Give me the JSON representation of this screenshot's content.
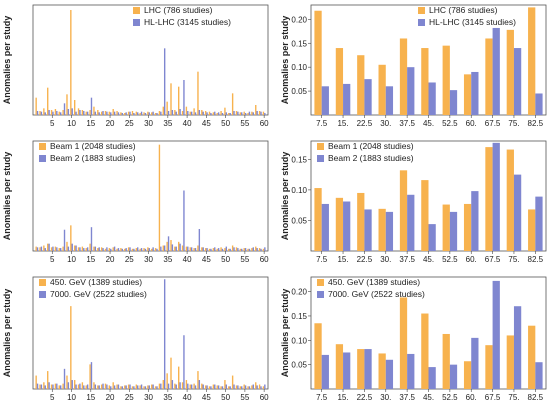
{
  "figure": {
    "colors": {
      "series_a": "#F7B24E",
      "series_b": "#7F86D0",
      "axis": "#555555"
    }
  },
  "chart_data": [
    {
      "type": "bar",
      "panel": "top-left",
      "ylabel": "Anomalies per study",
      "xlim": [
        0,
        61
      ],
      "ylim": [
        0,
        0.33
      ],
      "xticks": [
        "5",
        "10",
        "15",
        "20",
        "25",
        "30",
        "35",
        "40",
        "45",
        "50",
        "55",
        "60"
      ],
      "legend": "top-center",
      "grid": false,
      "x": [
        1,
        2,
        3,
        4,
        5,
        6,
        7,
        8,
        9,
        10,
        11,
        12,
        13,
        14,
        15,
        16,
        17,
        18,
        19,
        20,
        21,
        22,
        23,
        24,
        25,
        26,
        27,
        28,
        29,
        30,
        31,
        32,
        33,
        34,
        35,
        36,
        37,
        38,
        39,
        40,
        41,
        42,
        43,
        44,
        45,
        46,
        47,
        48,
        49,
        50,
        51,
        52,
        53,
        54,
        55,
        56,
        57,
        58,
        59,
        60
      ],
      "series": [
        {
          "name": "LHC (786 studies)",
          "values": [
            0.052,
            0.012,
            0.02,
            0.082,
            0.015,
            0.018,
            0.01,
            0.015,
            0.062,
            0.315,
            0.045,
            0.02,
            0.015,
            0.01,
            0.015,
            0.025,
            0.015,
            0.01,
            0.012,
            0.01,
            0.018,
            0.012,
            0.008,
            0.006,
            0.01,
            0.012,
            0.01,
            0.006,
            0.008,
            0.01,
            0.008,
            0.006,
            0.012,
            0.025,
            0.04,
            0.095,
            0.015,
            0.085,
            0.012,
            0.025,
            0.01,
            0.02,
            0.13,
            0.015,
            0.012,
            0.01,
            0.008,
            0.006,
            0.012,
            0.022,
            0.006,
            0.065,
            0.012,
            0.008,
            0.01,
            0.006,
            0.01,
            0.03,
            0.012,
            0.01
          ]
        },
        {
          "name": "HL-LHC (3145 studies)",
          "values": [
            0.012,
            0.01,
            0.008,
            0.015,
            0.01,
            0.012,
            0.008,
            0.035,
            0.018,
            0.02,
            0.01,
            0.015,
            0.012,
            0.01,
            0.052,
            0.01,
            0.008,
            0.012,
            0.01,
            0.008,
            0.01,
            0.008,
            0.006,
            0.008,
            0.01,
            0.006,
            0.008,
            0.01,
            0.006,
            0.008,
            0.01,
            0.006,
            0.01,
            0.2,
            0.012,
            0.015,
            0.01,
            0.018,
            0.105,
            0.012,
            0.01,
            0.008,
            0.015,
            0.01,
            0.008,
            0.006,
            0.01,
            0.008,
            0.006,
            0.008,
            0.006,
            0.012,
            0.01,
            0.008,
            0.006,
            0.01,
            0.008,
            0.012,
            0.01,
            0.006
          ]
        }
      ]
    },
    {
      "type": "bar",
      "panel": "top-right",
      "ylabel": "Anomalies per study",
      "ylim": [
        0,
        0.23
      ],
      "yticks": [
        "0.05",
        "0.10",
        "0.15",
        "0.20"
      ],
      "categories": [
        "7.5",
        "15.",
        "22.5",
        "30.",
        "37.5",
        "45.",
        "52.5",
        "60.",
        "67.5",
        "75.",
        "82.5"
      ],
      "legend": "top-right",
      "grid": false,
      "series": [
        {
          "name": "LHC (786 studies)",
          "values": [
            0.218,
            0.14,
            0.125,
            0.105,
            0.16,
            0.14,
            0.145,
            0.085,
            0.16,
            0.178,
            0.225
          ]
        },
        {
          "name": "HL-LHC (3145 studies)",
          "values": [
            0.06,
            0.065,
            0.075,
            0.06,
            0.1,
            0.068,
            0.052,
            0.09,
            0.182,
            0.14,
            0.045
          ]
        }
      ]
    },
    {
      "type": "bar",
      "panel": "middle-left",
      "ylabel": "Anomalies per study",
      "xlim": [
        0,
        61
      ],
      "ylim": [
        0,
        0.3
      ],
      "xticks": [
        "5",
        "10",
        "15",
        "20",
        "25",
        "30",
        "35",
        "40",
        "45",
        "50",
        "55",
        "60"
      ],
      "legend": "top-left",
      "grid": false,
      "x": [
        1,
        2,
        3,
        4,
        5,
        6,
        7,
        8,
        9,
        10,
        11,
        12,
        13,
        14,
        15,
        16,
        17,
        18,
        19,
        20,
        21,
        22,
        23,
        24,
        25,
        26,
        27,
        28,
        29,
        30,
        31,
        32,
        33,
        34,
        35,
        36,
        37,
        38,
        39,
        40,
        41,
        42,
        43,
        44,
        45,
        46,
        47,
        48,
        49,
        50,
        51,
        52,
        53,
        54,
        55,
        56,
        57,
        58,
        59,
        60
      ],
      "series": [
        {
          "name": "Beam 1 (2048 studies)",
          "values": [
            0.012,
            0.01,
            0.015,
            0.02,
            0.01,
            0.012,
            0.008,
            0.012,
            0.025,
            0.07,
            0.015,
            0.01,
            0.012,
            0.008,
            0.02,
            0.012,
            0.008,
            0.01,
            0.006,
            0.008,
            0.01,
            0.006,
            0.008,
            0.006,
            0.01,
            0.006,
            0.008,
            0.006,
            0.008,
            0.01,
            0.006,
            0.008,
            0.29,
            0.015,
            0.025,
            0.03,
            0.012,
            0.025,
            0.015,
            0.012,
            0.01,
            0.008,
            0.015,
            0.01,
            0.008,
            0.006,
            0.008,
            0.006,
            0.01,
            0.008,
            0.006,
            0.015,
            0.01,
            0.006,
            0.008,
            0.006,
            0.008,
            0.012,
            0.008,
            0.006
          ]
        },
        {
          "name": "Beam 2 (1883 studies)",
          "values": [
            0.01,
            0.012,
            0.008,
            0.02,
            0.012,
            0.01,
            0.008,
            0.058,
            0.012,
            0.02,
            0.015,
            0.01,
            0.008,
            0.01,
            0.065,
            0.012,
            0.01,
            0.008,
            0.01,
            0.006,
            0.012,
            0.008,
            0.006,
            0.008,
            0.01,
            0.006,
            0.01,
            0.008,
            0.006,
            0.008,
            0.01,
            0.006,
            0.012,
            0.015,
            0.04,
            0.018,
            0.012,
            0.02,
            0.165,
            0.012,
            0.01,
            0.008,
            0.06,
            0.01,
            0.008,
            0.006,
            0.01,
            0.008,
            0.006,
            0.012,
            0.006,
            0.01,
            0.008,
            0.006,
            0.008,
            0.006,
            0.01,
            0.008,
            0.006,
            0.01
          ]
        }
      ]
    },
    {
      "type": "bar",
      "panel": "middle-right",
      "ylabel": "Anomalies per study",
      "ylim": [
        0,
        0.18
      ],
      "yticks": [
        "0.05",
        "0.10",
        "0.15"
      ],
      "categories": [
        "7.5",
        "15.",
        "22.5",
        "30.",
        "37.5",
        "45.",
        "52.5",
        "60.",
        "67.5",
        "75.",
        "82.5"
      ],
      "legend": "top-left",
      "grid": false,
      "series": [
        {
          "name": "Beam 1 (2048 studies)",
          "values": [
            0.103,
            0.087,
            0.095,
            0.069,
            0.132,
            0.116,
            0.076,
            0.077,
            0.17,
            0.166,
            0.068
          ]
        },
        {
          "name": "Beam 2 (1883 studies)",
          "values": [
            0.077,
            0.081,
            0.068,
            0.064,
            0.092,
            0.044,
            0.064,
            0.098,
            0.177,
            0.125,
            0.089
          ]
        }
      ]
    },
    {
      "type": "bar",
      "panel": "bottom-left",
      "ylabel": "Anomalies per study",
      "xlim": [
        0,
        61
      ],
      "ylim": [
        0,
        0.25
      ],
      "xticks": [
        "5",
        "10",
        "15",
        "20",
        "25",
        "30",
        "35",
        "40",
        "45",
        "50",
        "55",
        "60"
      ],
      "legend": "top-left",
      "grid": false,
      "x": [
        1,
        2,
        3,
        4,
        5,
        6,
        7,
        8,
        9,
        10,
        11,
        12,
        13,
        14,
        15,
        16,
        17,
        18,
        19,
        20,
        21,
        22,
        23,
        24,
        25,
        26,
        27,
        28,
        29,
        30,
        31,
        32,
        33,
        34,
        35,
        36,
        37,
        38,
        39,
        40,
        41,
        42,
        43,
        44,
        45,
        46,
        47,
        48,
        49,
        50,
        51,
        52,
        53,
        54,
        55,
        56,
        57,
        58,
        59,
        60
      ],
      "series": [
        {
          "name": "450. GeV (1389 studies)",
          "values": [
            0.03,
            0.01,
            0.015,
            0.04,
            0.01,
            0.012,
            0.008,
            0.012,
            0.03,
            0.185,
            0.02,
            0.01,
            0.015,
            0.008,
            0.055,
            0.015,
            0.008,
            0.01,
            0.012,
            0.008,
            0.015,
            0.01,
            0.006,
            0.008,
            0.01,
            0.006,
            0.01,
            0.008,
            0.006,
            0.008,
            0.01,
            0.006,
            0.012,
            0.02,
            0.035,
            0.07,
            0.012,
            0.05,
            0.015,
            0.02,
            0.01,
            0.012,
            0.04,
            0.012,
            0.008,
            0.006,
            0.01,
            0.008,
            0.006,
            0.02,
            0.006,
            0.03,
            0.008,
            0.006,
            0.01,
            0.006,
            0.008,
            0.015,
            0.01,
            0.006
          ]
        },
        {
          "name": "7000. GeV (2522 studies)",
          "values": [
            0.012,
            0.01,
            0.008,
            0.015,
            0.01,
            0.012,
            0.008,
            0.045,
            0.015,
            0.02,
            0.01,
            0.012,
            0.008,
            0.01,
            0.06,
            0.01,
            0.008,
            0.012,
            0.01,
            0.006,
            0.008,
            0.01,
            0.006,
            0.008,
            0.01,
            0.006,
            0.008,
            0.01,
            0.006,
            0.008,
            0.01,
            0.006,
            0.012,
            0.245,
            0.012,
            0.02,
            0.01,
            0.015,
            0.12,
            0.012,
            0.01,
            0.008,
            0.02,
            0.01,
            0.008,
            0.006,
            0.01,
            0.008,
            0.006,
            0.01,
            0.006,
            0.01,
            0.008,
            0.006,
            0.008,
            0.006,
            0.01,
            0.008,
            0.006,
            0.01
          ]
        }
      ]
    },
    {
      "type": "bar",
      "panel": "bottom-right",
      "ylabel": "Anomalies per study",
      "ylim": [
        0,
        0.23
      ],
      "yticks": [
        "0.05",
        "0.10",
        "0.15",
        "0.20"
      ],
      "categories": [
        "7.5",
        "15.",
        "22.5",
        "30.",
        "37.5",
        "45.",
        "52.5",
        "60.",
        "67.5",
        "75.",
        "82.5"
      ],
      "legend": "top-left",
      "grid": false,
      "series": [
        {
          "name": "450. GeV (1389 studies)",
          "values": [
            0.135,
            0.092,
            0.082,
            0.073,
            0.188,
            0.155,
            0.113,
            0.057,
            0.09,
            0.11,
            0.13
          ]
        },
        {
          "name": "7000. GeV (2522 studies)",
          "values": [
            0.07,
            0.075,
            0.082,
            0.06,
            0.072,
            0.045,
            0.05,
            0.105,
            0.222,
            0.17,
            0.055
          ]
        }
      ]
    }
  ]
}
